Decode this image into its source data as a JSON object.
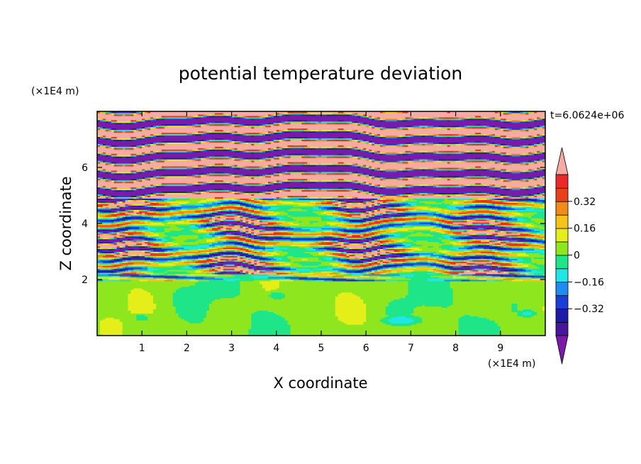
{
  "chart_data": {
    "type": "heatmap",
    "title": "potential temperature deviation",
    "xlabel": "X coordinate",
    "ylabel": "Z coordinate",
    "x_unit": "(×1E4 m)",
    "y_unit": "(×1E4 m)",
    "time_label": "t=6.0624e+06",
    "xlim": [
      0,
      10
    ],
    "ylim": [
      0,
      8
    ],
    "x_ticks": [
      "1",
      "2",
      "3",
      "4",
      "5",
      "6",
      "7",
      "8",
      "9"
    ],
    "x_tick_values": [
      1,
      2,
      3,
      4,
      5,
      6,
      7,
      8,
      9
    ],
    "y_ticks": [
      "2",
      "4",
      "6"
    ],
    "y_tick_values": [
      2,
      4,
      6
    ],
    "colorbar": {
      "levels": [
        -0.48,
        -0.4,
        -0.32,
        -0.24,
        -0.16,
        -0.08,
        0,
        0.08,
        0.16,
        0.24,
        0.32,
        0.4,
        0.48
      ],
      "colors": [
        "#7a1aa8",
        "#47169a",
        "#1c1ca8",
        "#1a3fd6",
        "#1e8cf0",
        "#21e6e8",
        "#1ee688",
        "#8ee61e",
        "#e6ee1a",
        "#f5c31a",
        "#f28a19",
        "#e8401a",
        "#ea2a28",
        "#f5aaa6"
      ],
      "tick_labels": [
        "0.32",
        "0.16",
        "0",
        "−0.16",
        "−0.32"
      ],
      "tick_values": [
        0.32,
        0.16,
        0,
        -0.16,
        -0.32
      ]
    }
  }
}
